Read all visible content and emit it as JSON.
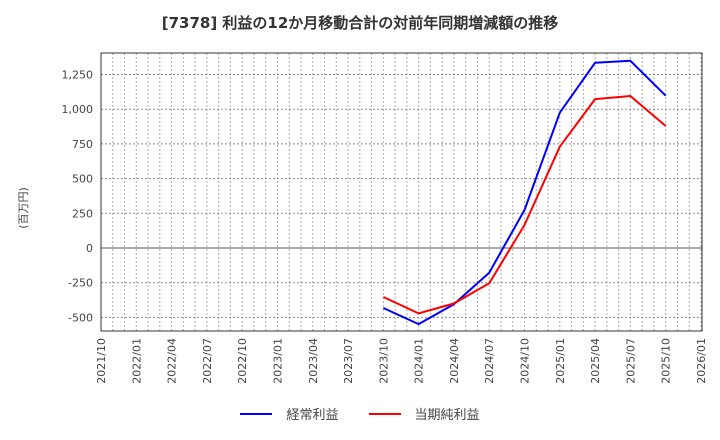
{
  "chart_data": {
    "type": "line",
    "title": "[7378]  利益の12か月移動合計の対前年同期増減額の推移",
    "xlabel": "",
    "ylabel": "(百万円)",
    "ylim": [
      -600,
      1400
    ],
    "yticks": [
      -500,
      -250,
      0,
      250,
      500,
      750,
      1000,
      1250
    ],
    "ytick_labels": [
      "-500",
      "-250",
      "0",
      "250",
      "500",
      "750",
      "1,000",
      "1,250"
    ],
    "x_ticks": [
      "2021/10",
      "2022/01",
      "2022/04",
      "2022/07",
      "2022/10",
      "2023/01",
      "2023/04",
      "2023/07",
      "2023/10",
      "2024/01",
      "2024/04",
      "2024/07",
      "2024/10",
      "2025/01",
      "2025/04",
      "2025/07",
      "2025/10",
      "2026/01"
    ],
    "x": [
      "2023/10",
      "2024/01",
      "2024/04",
      "2024/07",
      "2024/10",
      "2025/01",
      "2025/04",
      "2025/07",
      "2025/10"
    ],
    "series": [
      {
        "name": "経常利益",
        "color": "#0000ff",
        "values": [
          -432,
          -548,
          -405,
          -178,
          274,
          975,
          1335,
          1349,
          1097
        ]
      },
      {
        "name": "当期純利益",
        "color": "#ff0000",
        "values": [
          -353,
          -471,
          -400,
          -254,
          166,
          730,
          1073,
          1095,
          879
        ]
      }
    ],
    "grid": true,
    "legend_position": "bottom"
  }
}
